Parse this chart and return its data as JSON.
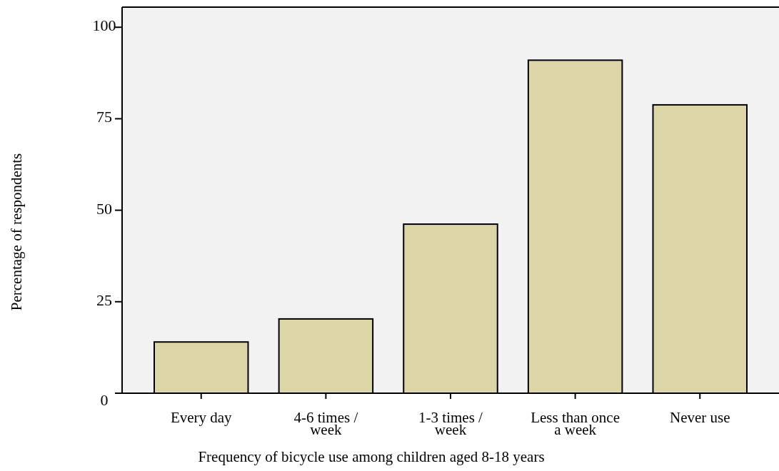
{
  "chart_data": {
    "type": "bar",
    "xlabel": "Frequency of bicycle use among children aged 8-18 years",
    "ylabel": "Percentage of  respondents",
    "categories": [
      "Every day",
      "4-6 times /\nweek",
      "1-3 times /\nweek",
      "Less than once\na week",
      "Never use"
    ],
    "values": [
      14.0,
      20.3,
      46.2,
      91.0,
      78.8
    ],
    "color": "#dcd5a8",
    "ylim": [
      0,
      105.5
    ],
    "yticks": [
      0,
      25,
      50,
      75,
      100
    ],
    "grid": false
  }
}
